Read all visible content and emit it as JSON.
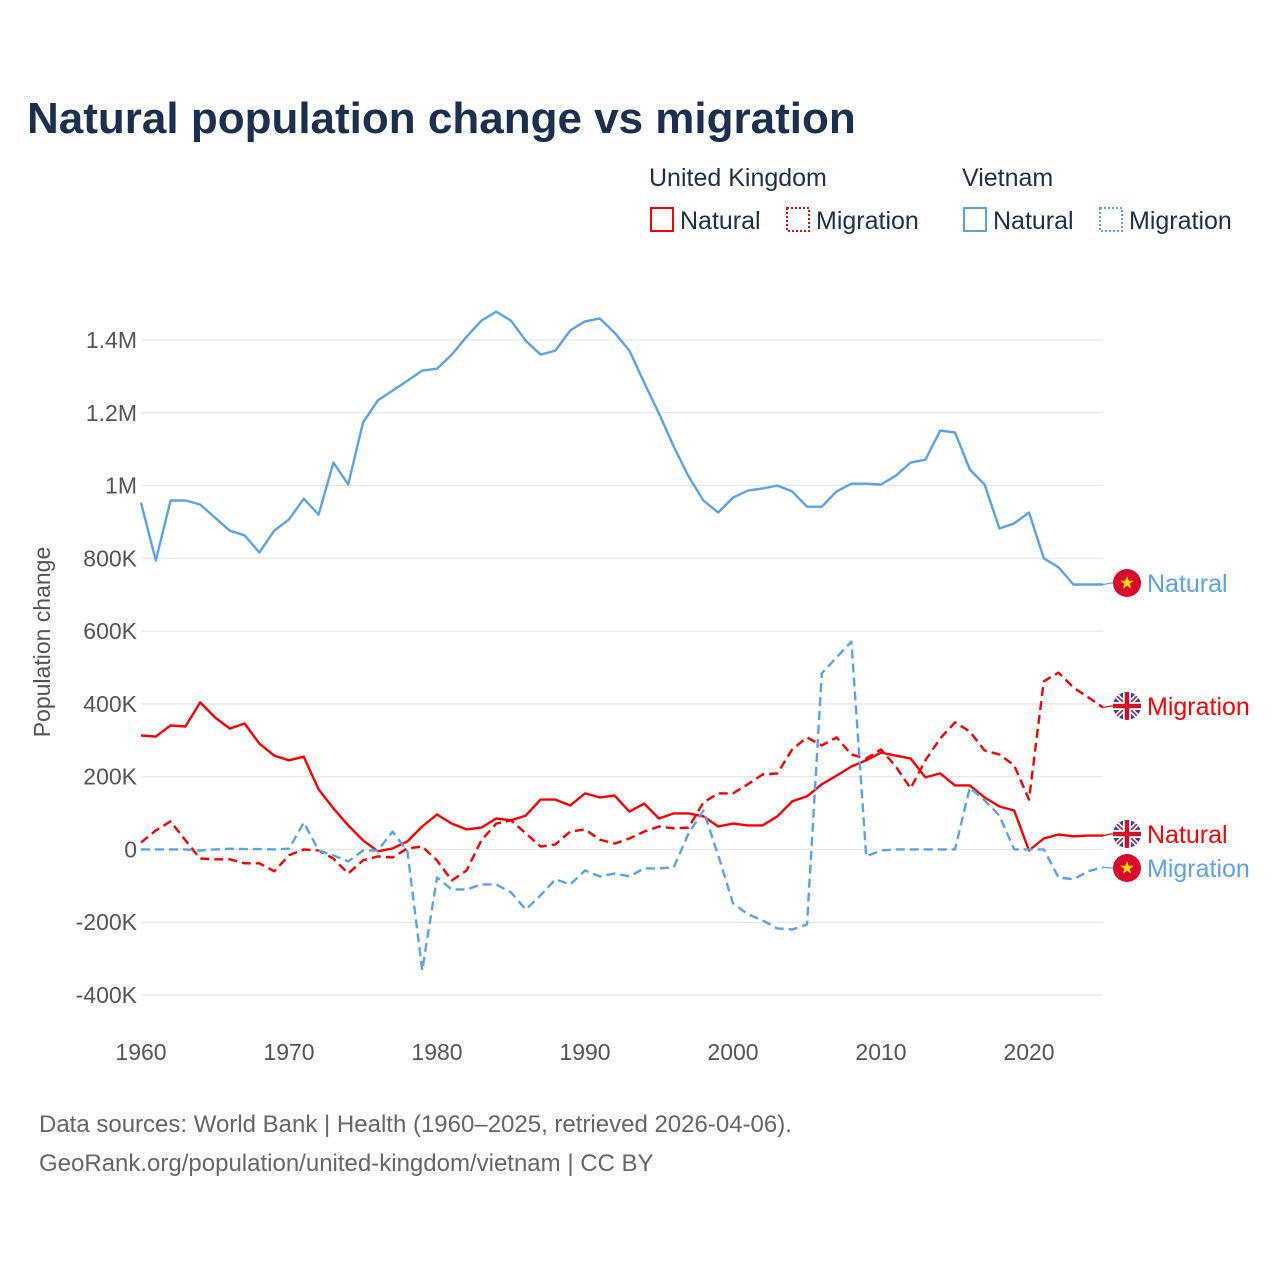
{
  "chart_data": {
    "type": "line",
    "title": "Natural population change vs migration",
    "xlabel": "",
    "ylabel": "Population change",
    "xlim": [
      1960,
      2025
    ],
    "ylim": [
      -400000,
      1400000
    ],
    "grid": true,
    "legend_placement": "top-right",
    "x_ticks": [
      "1960",
      "1970",
      "1980",
      "1990",
      "2000",
      "2010",
      "2020"
    ],
    "y_ticks": [
      {
        "value": 1400000,
        "label": "1.4M"
      },
      {
        "value": 1200000,
        "label": "1.2M"
      },
      {
        "value": 1000000,
        "label": "1M"
      },
      {
        "value": 800000,
        "label": "800K"
      },
      {
        "value": 600000,
        "label": "600K"
      },
      {
        "value": 400000,
        "label": "400K"
      },
      {
        "value": 200000,
        "label": "200K"
      },
      {
        "value": 0,
        "label": "0"
      },
      {
        "value": -200000,
        "label": "-200K"
      },
      {
        "value": -400000,
        "label": "-400K"
      }
    ],
    "legend": {
      "groups": [
        {
          "country": "United Kingdom",
          "items": [
            "Natural",
            "Migration"
          ]
        },
        {
          "country": "Vietnam",
          "items": [
            "Natural",
            "Migration"
          ]
        }
      ]
    },
    "x_start": 1960,
    "series_units": "thousands",
    "series": [
      {
        "name": "Vietnam Natural",
        "country": "Vietnam",
        "kind": "Natural",
        "color": "#5ba3e8",
        "dash": false,
        "end_label": "Natural",
        "flag": "vietnam",
        "values": [
          953,
          794,
          959,
          959,
          948,
          912,
          876,
          863,
          816,
          876,
          907,
          964,
          920,
          1063,
          1003,
          1173,
          1234,
          1261,
          1288,
          1316,
          1321,
          1360,
          1409,
          1453,
          1478,
          1453,
          1398,
          1360,
          1371,
          1426,
          1451,
          1459,
          1420,
          1371,
          1283,
          1198,
          1107,
          1025,
          959,
          926,
          967,
          986,
          992,
          1000,
          984,
          942,
          942,
          984,
          1005,
          1005,
          1003,
          1027,
          1063,
          1071,
          1151,
          1146,
          1044,
          1003,
          882,
          896,
          926,
          800,
          775,
          728,
          728,
          728
        ]
      },
      {
        "name": "United Kingdom Migration",
        "country": "United Kingdom",
        "kind": "Migration",
        "color": "#ff0000",
        "dash": true,
        "end_label": "Migration",
        "flag": "uk",
        "values": [
          19,
          52,
          77,
          25,
          -25,
          -27,
          -27,
          -38,
          -38,
          -60,
          -16,
          0,
          -3,
          -25,
          -66,
          -30,
          -19,
          -22,
          3,
          8,
          -30,
          -85,
          -58,
          25,
          71,
          80,
          44,
          8,
          14,
          49,
          55,
          27,
          16,
          30,
          49,
          63,
          58,
          60,
          129,
          154,
          154,
          179,
          206,
          209,
          275,
          308,
          286,
          308,
          261,
          250,
          275,
          228,
          168,
          245,
          305,
          349,
          324,
          272,
          261,
          231,
          137,
          462,
          486,
          445,
          418,
          390
        ]
      },
      {
        "name": "United Kingdom Natural",
        "country": "United Kingdom",
        "kind": "Natural",
        "color": "#ff0000",
        "dash": false,
        "end_label": "Natural",
        "flag": "uk",
        "values": [
          313,
          310,
          341,
          338,
          404,
          363,
          332,
          346,
          291,
          258,
          245,
          255,
          165,
          113,
          66,
          25,
          -5,
          3,
          22,
          63,
          96,
          71,
          55,
          60,
          85,
          80,
          93,
          137,
          137,
          121,
          154,
          143,
          148,
          104,
          126,
          85,
          99,
          99,
          91,
          63,
          71,
          66,
          66,
          91,
          132,
          146,
          179,
          203,
          228,
          245,
          266,
          258,
          250,
          198,
          209,
          176,
          176,
          143,
          118,
          107,
          -3,
          30,
          41,
          36,
          38,
          38
        ]
      },
      {
        "name": "Vietnam Migration",
        "country": "Vietnam",
        "kind": "Migration",
        "color": "#5ba3e8",
        "dash": true,
        "end_label": "Migration",
        "flag": "vietnam",
        "values": [
          0,
          0,
          0,
          0,
          -3,
          0,
          2,
          1,
          1,
          0,
          2,
          74,
          -3,
          -16,
          -33,
          -3,
          -3,
          49,
          -5,
          -332,
          -77,
          -110,
          -110,
          -96,
          -96,
          -118,
          -165,
          -126,
          -82,
          -96,
          -58,
          -74,
          -66,
          -74,
          -52,
          -52,
          -49,
          44,
          107,
          -16,
          -148,
          -178,
          -195,
          -217,
          -220,
          -206,
          484,
          528,
          571,
          -19,
          -3,
          0,
          0,
          0,
          0,
          0,
          170,
          135,
          93,
          0,
          0,
          0,
          -77,
          -82,
          -60,
          -49
        ]
      }
    ],
    "source_lines": [
      "Data sources: World Bank | Health (1960–2025, retrieved 2026-04-06).",
      "GeoRank.org/population/united-kingdom/vietnam | CC BY"
    ]
  }
}
